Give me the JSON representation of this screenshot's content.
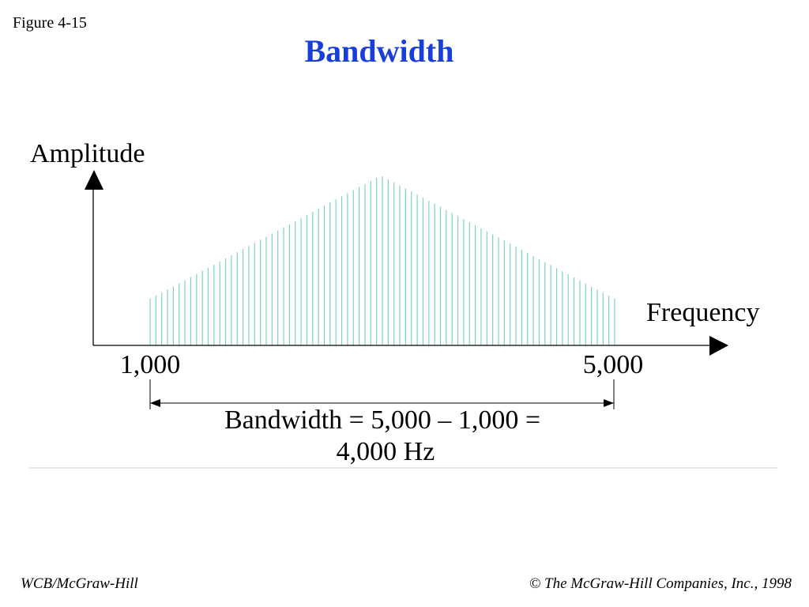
{
  "header": {
    "figure": "Figure 4-15",
    "title": "Bandwidth"
  },
  "diagram": {
    "y_axis_label": "Amplitude",
    "x_axis_label": "Frequency",
    "low_frequency": "1,000",
    "high_frequency": "5,000",
    "formula_line1": "Bandwidth = 5,000 – 1,000 =",
    "formula_line2": "4,000 Hz"
  },
  "footer": {
    "left": "WCB/McGraw-Hill",
    "right": "© The McGraw-Hill Companies, Inc., 1998"
  }
}
